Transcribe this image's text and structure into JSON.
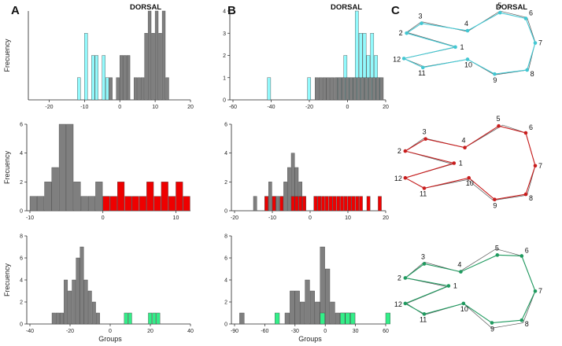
{
  "figure": {
    "panel_labels": [
      "A",
      "B",
      "C"
    ],
    "dorsal_label": "DORSAL",
    "ylabel": "Frecuency",
    "xlabel": "Groups"
  },
  "colors": {
    "gray": "#7f7f7f",
    "cyan": "#7ff8fb",
    "dark_teal": "#3f6468",
    "red": "#ee0000",
    "green": "#33ee88",
    "shape_cyan": "#43c7d2",
    "shape_red": "#c81d1d",
    "shape_green": "#1f9a5f",
    "shape_ref": "#555555"
  },
  "chart_data": [
    {
      "id": "A1",
      "type": "bar",
      "subtype": "histogram",
      "title": "DORSAL",
      "ylabel": "Frecuency",
      "xlabel": "",
      "xlim": [
        -25,
        20
      ],
      "ylim": [
        0,
        4
      ],
      "xticks": [
        -20,
        -10,
        0,
        10,
        20
      ],
      "yticks": [],
      "bin_width": 1,
      "series": [
        {
          "name": "group 1",
          "color": "cyan",
          "bins": [
            [
              -12,
              1
            ],
            [
              -10,
              3
            ],
            [
              -8,
              2
            ],
            [
              -7,
              2
            ],
            [
              -5,
              2
            ],
            [
              -4,
              1
            ]
          ]
        },
        {
          "name": "group 2",
          "color": "gray",
          "bins": [
            [
              -3,
              1
            ],
            [
              -1,
              1
            ],
            [
              0,
              2
            ],
            [
              1,
              2
            ],
            [
              2,
              2
            ],
            [
              4,
              1
            ],
            [
              5,
              1
            ],
            [
              6,
              1
            ],
            [
              7,
              3
            ],
            [
              8,
              4
            ],
            [
              9,
              3
            ],
            [
              10,
              4
            ],
            [
              11,
              3
            ],
            [
              12,
              4
            ],
            [
              13,
              1
            ]
          ]
        }
      ]
    },
    {
      "id": "B1",
      "type": "bar",
      "subtype": "histogram",
      "title": "DORSAL",
      "ylabel": "",
      "xlabel": "",
      "xlim": [
        -60,
        20
      ],
      "ylim": [
        0,
        4
      ],
      "xticks": [
        -60,
        -40,
        -20,
        0,
        20
      ],
      "yticks": [
        0,
        1,
        2,
        3,
        4
      ],
      "bin_width": 2,
      "series": [
        {
          "name": "group 1",
          "color": "cyan",
          "bins": [
            [
              -42,
              1
            ],
            [
              -21,
              1
            ],
            [
              -6,
              1
            ],
            [
              -4,
              1
            ],
            [
              -2,
              2
            ],
            [
              0,
              1
            ],
            [
              2,
              1
            ],
            [
              4,
              4
            ],
            [
              6,
              3
            ],
            [
              8,
              3
            ],
            [
              10,
              2
            ],
            [
              12,
              3
            ],
            [
              14,
              2
            ],
            [
              16,
              1
            ]
          ]
        },
        {
          "name": "group 2",
          "color": "gray",
          "bins": [
            [
              -17,
              1
            ],
            [
              -15,
              1
            ],
            [
              -13,
              1
            ],
            [
              -11,
              1
            ],
            [
              -9,
              1
            ],
            [
              -7,
              1
            ],
            [
              -5,
              1
            ],
            [
              -3,
              1
            ],
            [
              -1,
              1
            ],
            [
              1,
              1
            ],
            [
              3,
              1
            ],
            [
              5,
              1
            ],
            [
              7,
              1
            ],
            [
              9,
              1
            ],
            [
              11,
              1
            ],
            [
              13,
              1
            ],
            [
              15,
              1
            ],
            [
              17,
              1
            ]
          ]
        }
      ]
    },
    {
      "id": "A2",
      "type": "bar",
      "subtype": "histogram",
      "title": "",
      "ylabel": "Frecuency",
      "xlabel": "",
      "xlim": [
        -10,
        12
      ],
      "ylim": [
        0,
        6
      ],
      "xticks": [
        -10,
        0,
        10
      ],
      "yticks": [
        0,
        2,
        4,
        6
      ],
      "bin_width": 1,
      "series": [
        {
          "name": "group 1",
          "color": "gray",
          "bins": [
            [
              -10,
              1
            ],
            [
              -9,
              1
            ],
            [
              -8,
              2
            ],
            [
              -7,
              3
            ],
            [
              -6,
              6
            ],
            [
              -5,
              6
            ],
            [
              -4,
              2
            ],
            [
              -3,
              1
            ],
            [
              -2,
              1
            ],
            [
              -1,
              2
            ],
            [
              0,
              1
            ]
          ]
        },
        {
          "name": "group 2",
          "color": "red",
          "bins": [
            [
              0,
              1
            ],
            [
              1,
              1
            ],
            [
              2,
              2
            ],
            [
              3,
              1
            ],
            [
              4,
              1
            ],
            [
              5,
              1
            ],
            [
              6,
              2
            ],
            [
              7,
              1
            ],
            [
              8,
              2
            ],
            [
              9,
              1
            ],
            [
              10,
              2
            ],
            [
              11,
              1
            ]
          ]
        }
      ]
    },
    {
      "id": "B2",
      "type": "bar",
      "subtype": "histogram",
      "title": "",
      "ylabel": "",
      "xlabel": "",
      "xlim": [
        -20,
        20
      ],
      "ylim": [
        0,
        6
      ],
      "xticks": [
        -20,
        -10,
        0,
        10,
        20
      ],
      "yticks": [
        0,
        2,
        4,
        6
      ],
      "bin_width": 1,
      "series": [
        {
          "name": "group 1",
          "color": "gray",
          "bins": [
            [
              -15,
              1
            ],
            [
              -12,
              1
            ],
            [
              -11,
              2
            ],
            [
              -10,
              1
            ],
            [
              -9,
              1
            ],
            [
              -8,
              1
            ],
            [
              -7,
              2
            ],
            [
              -6,
              3
            ],
            [
              -5,
              4
            ],
            [
              -4,
              3
            ],
            [
              -3,
              2
            ],
            [
              -2,
              1
            ],
            [
              1,
              1
            ],
            [
              2,
              1
            ]
          ]
        },
        {
          "name": "group 2",
          "color": "red",
          "bins": [
            [
              -12,
              1
            ],
            [
              -10,
              1
            ],
            [
              -8,
              1
            ],
            [
              -5,
              1
            ],
            [
              -4,
              1
            ],
            [
              -3,
              1
            ],
            [
              -2,
              1
            ],
            [
              1,
              1
            ],
            [
              2,
              1
            ],
            [
              3,
              1
            ],
            [
              4,
              1
            ],
            [
              5,
              1
            ],
            [
              6,
              1
            ],
            [
              7,
              1
            ],
            [
              8,
              1
            ],
            [
              9,
              1
            ],
            [
              10,
              1
            ],
            [
              11,
              1
            ],
            [
              12,
              1
            ],
            [
              13,
              1
            ],
            [
              15,
              1
            ],
            [
              18,
              1
            ]
          ]
        }
      ]
    },
    {
      "id": "A3",
      "type": "bar",
      "subtype": "histogram",
      "title": "",
      "ylabel": "Frecuency",
      "xlabel": "Groups",
      "xlim": [
        -40,
        40
      ],
      "ylim": [
        0,
        8
      ],
      "xticks": [
        -40,
        -20,
        0,
        20,
        40
      ],
      "yticks": [
        0,
        2,
        4,
        6,
        8
      ],
      "bin_width": 2,
      "series": [
        {
          "name": "group 1",
          "color": "gray",
          "bins": [
            [
              -29,
              1
            ],
            [
              -27,
              1
            ],
            [
              -25,
              1
            ],
            [
              -23,
              4
            ],
            [
              -21,
              3
            ],
            [
              -19,
              4
            ],
            [
              -17,
              6
            ],
            [
              -15,
              7
            ],
            [
              -13,
              4
            ],
            [
              -11,
              3
            ],
            [
              -9,
              2
            ],
            [
              -7,
              1
            ]
          ]
        },
        {
          "name": "group 2",
          "color": "green",
          "bins": [
            [
              7,
              1
            ],
            [
              9,
              1
            ],
            [
              19,
              1
            ],
            [
              21,
              1
            ],
            [
              23,
              1
            ]
          ]
        }
      ]
    },
    {
      "id": "B3",
      "type": "bar",
      "subtype": "histogram",
      "title": "",
      "ylabel": "",
      "xlabel": "Groups",
      "xlim": [
        -90,
        60
      ],
      "ylim": [
        0,
        8
      ],
      "xticks": [
        -90,
        -60,
        -30,
        0,
        30,
        60
      ],
      "yticks": [
        0,
        2,
        4,
        6,
        8
      ],
      "bin_width": 5,
      "series": [
        {
          "name": "group 1",
          "color": "gray",
          "bins": [
            [
              -85,
              1
            ],
            [
              -40,
              1
            ],
            [
              -35,
              3
            ],
            [
              -30,
              3
            ],
            [
              -25,
              2
            ],
            [
              -20,
              4
            ],
            [
              -15,
              3
            ],
            [
              -10,
              2
            ],
            [
              -5,
              7
            ],
            [
              0,
              5
            ],
            [
              5,
              2
            ],
            [
              10,
              1
            ],
            [
              15,
              1
            ],
            [
              20,
              1
            ],
            [
              25,
              1
            ]
          ]
        },
        {
          "name": "group 2",
          "color": "green",
          "bins": [
            [
              -50,
              1
            ],
            [
              -5,
              1
            ],
            [
              15,
              1
            ],
            [
              20,
              1
            ],
            [
              25,
              1
            ],
            [
              60,
              1
            ]
          ]
        }
      ]
    }
  ],
  "shapes": [
    {
      "id": "C1",
      "color": "shape_cyan",
      "labels": [
        "1",
        "2",
        "3",
        "4",
        "5",
        "6",
        "7",
        "8",
        "9",
        "10",
        "11",
        "12"
      ],
      "ref": [
        [
          0.42,
          0.46
        ],
        [
          0.05,
          0.28
        ],
        [
          0.16,
          0.15
        ],
        [
          0.5,
          0.27
        ],
        [
          0.74,
          0.02
        ],
        [
          0.94,
          0.1
        ],
        [
          1.0,
          0.4
        ],
        [
          0.95,
          0.74
        ],
        [
          0.7,
          0.8
        ],
        [
          0.5,
          0.61
        ],
        [
          0.18,
          0.7
        ],
        [
          0.03,
          0.6
        ]
      ],
      "pts": [
        [
          0.41,
          0.46
        ],
        [
          0.05,
          0.29
        ],
        [
          0.16,
          0.17
        ],
        [
          0.5,
          0.26
        ],
        [
          0.74,
          0.04
        ],
        [
          0.93,
          0.11
        ],
        [
          1.0,
          0.41
        ],
        [
          0.94,
          0.74
        ],
        [
          0.7,
          0.79
        ],
        [
          0.5,
          0.61
        ],
        [
          0.17,
          0.71
        ],
        [
          0.03,
          0.6
        ]
      ]
    },
    {
      "id": "C2",
      "color": "shape_red",
      "labels": [
        "1",
        "2",
        "3",
        "4",
        "5",
        "6",
        "7",
        "8",
        "9",
        "10",
        "11",
        "12"
      ],
      "ref": [
        [
          0.39,
          0.46
        ],
        [
          0.04,
          0.31
        ],
        [
          0.18,
          0.16
        ],
        [
          0.48,
          0.27
        ],
        [
          0.76,
          0.01
        ],
        [
          0.93,
          0.1
        ],
        [
          1.0,
          0.48
        ],
        [
          0.94,
          0.82
        ],
        [
          0.69,
          0.88
        ],
        [
          0.5,
          0.64
        ],
        [
          0.18,
          0.74
        ],
        [
          0.04,
          0.62
        ]
      ],
      "pts": [
        [
          0.4,
          0.45
        ],
        [
          0.04,
          0.31
        ],
        [
          0.19,
          0.17
        ],
        [
          0.48,
          0.27
        ],
        [
          0.73,
          0.02
        ],
        [
          0.93,
          0.1
        ],
        [
          1.0,
          0.48
        ],
        [
          0.93,
          0.81
        ],
        [
          0.7,
          0.87
        ],
        [
          0.51,
          0.62
        ],
        [
          0.18,
          0.74
        ],
        [
          0.04,
          0.62
        ]
      ]
    },
    {
      "id": "C3",
      "color": "shape_green",
      "labels": [
        "1",
        "2",
        "3",
        "4",
        "5",
        "6",
        "7",
        "8",
        "9",
        "10",
        "11",
        "12"
      ],
      "ref": [
        [
          0.35,
          0.47
        ],
        [
          0.04,
          0.37
        ],
        [
          0.18,
          0.19
        ],
        [
          0.44,
          0.3
        ],
        [
          0.71,
          0.04
        ],
        [
          0.9,
          0.12
        ],
        [
          1.0,
          0.52
        ],
        [
          0.91,
          0.88
        ],
        [
          0.68,
          0.94
        ],
        [
          0.47,
          0.66
        ],
        [
          0.18,
          0.79
        ],
        [
          0.05,
          0.66
        ]
      ],
      "pts": [
        [
          0.36,
          0.46
        ],
        [
          0.04,
          0.37
        ],
        [
          0.18,
          0.21
        ],
        [
          0.45,
          0.3
        ],
        [
          0.72,
          0.11
        ],
        [
          0.9,
          0.12
        ],
        [
          1.0,
          0.52
        ],
        [
          0.9,
          0.85
        ],
        [
          0.68,
          0.88
        ],
        [
          0.47,
          0.66
        ],
        [
          0.18,
          0.78
        ],
        [
          0.04,
          0.66
        ]
      ]
    }
  ]
}
